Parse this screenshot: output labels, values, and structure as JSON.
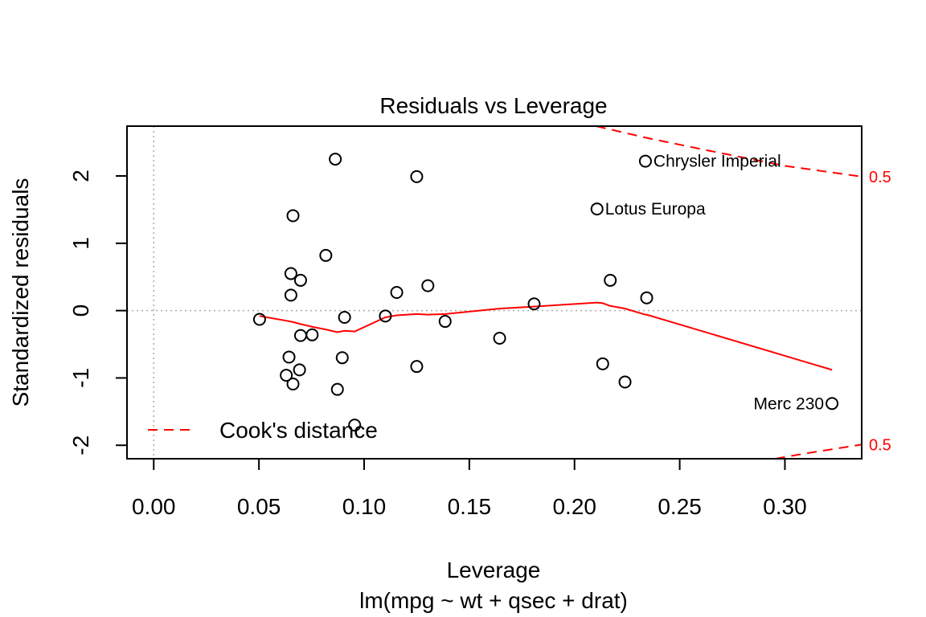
{
  "chart_data": {
    "type": "scatter",
    "title": "Residuals vs Leverage",
    "xlabel": "Leverage",
    "subtitle": "lm(mpg ~ wt + qsec + drat)",
    "ylabel": "Standardized residuals",
    "xlim": [
      -0.0127,
      0.3365
    ],
    "ylim": [
      -2.2,
      2.74
    ],
    "x_ticks": [
      {
        "value": 0.0,
        "label": "0.00"
      },
      {
        "value": 0.05,
        "label": "0.05"
      },
      {
        "value": 0.1,
        "label": "0.10"
      },
      {
        "value": 0.15,
        "label": "0.15"
      },
      {
        "value": 0.2,
        "label": "0.20"
      },
      {
        "value": 0.25,
        "label": "0.25"
      },
      {
        "value": 0.3,
        "label": "0.30"
      }
    ],
    "y_ticks": [
      {
        "value": -2,
        "label": "-2"
      },
      {
        "value": -1,
        "label": "-1"
      },
      {
        "value": 0,
        "label": "0"
      },
      {
        "value": 1,
        "label": "1"
      },
      {
        "value": 2,
        "label": "2"
      }
    ],
    "grid": false,
    "reference_lines": {
      "x": 0,
      "y": 0,
      "style": "dotted",
      "color": "#aaaaaa"
    },
    "points": [
      {
        "x": 0.0863,
        "y": 2.25
      },
      {
        "x": 0.125,
        "y": 1.99
      },
      {
        "x": 0.2337,
        "y": 2.22,
        "label": "Chrysler Imperial"
      },
      {
        "x": 0.2107,
        "y": 1.51,
        "label": "Lotus Europa"
      },
      {
        "x": 0.0662,
        "y": 1.41
      },
      {
        "x": 0.0818,
        "y": 0.82
      },
      {
        "x": 0.0652,
        "y": 0.55
      },
      {
        "x": 0.0698,
        "y": 0.45
      },
      {
        "x": 0.0652,
        "y": 0.23
      },
      {
        "x": 0.1155,
        "y": 0.27
      },
      {
        "x": 0.1303,
        "y": 0.37
      },
      {
        "x": 0.1808,
        "y": 0.1
      },
      {
        "x": 0.217,
        "y": 0.45
      },
      {
        "x": 0.2343,
        "y": 0.19
      },
      {
        "x": 0.0503,
        "y": -0.13
      },
      {
        "x": 0.0907,
        "y": -0.1
      },
      {
        "x": 0.1101,
        "y": -0.08
      },
      {
        "x": 0.1385,
        "y": -0.16
      },
      {
        "x": 0.0698,
        "y": -0.37
      },
      {
        "x": 0.0753,
        "y": -0.36
      },
      {
        "x": 0.1644,
        "y": -0.41
      },
      {
        "x": 0.0643,
        "y": -0.69
      },
      {
        "x": 0.0896,
        "y": -0.7
      },
      {
        "x": 0.125,
        "y": -0.83
      },
      {
        "x": 0.2134,
        "y": -0.79
      },
      {
        "x": 0.0693,
        "y": -0.88
      },
      {
        "x": 0.063,
        "y": -0.96
      },
      {
        "x": 0.0662,
        "y": -1.09
      },
      {
        "x": 0.0873,
        "y": -1.17
      },
      {
        "x": 0.224,
        "y": -1.06
      },
      {
        "x": 0.0955,
        "y": -1.7
      },
      {
        "x": 0.3224,
        "y": -1.38,
        "label": "Merc 230"
      }
    ],
    "smoother": {
      "name": "smoother",
      "color": "#ff0000",
      "points": [
        [
          0.0503,
          -0.08
        ],
        [
          0.063,
          -0.15
        ],
        [
          0.0662,
          -0.17
        ],
        [
          0.0698,
          -0.2
        ],
        [
          0.0753,
          -0.24
        ],
        [
          0.0818,
          -0.28
        ],
        [
          0.0873,
          -0.32
        ],
        [
          0.0907,
          -0.3
        ],
        [
          0.0955,
          -0.31
        ],
        [
          0.1101,
          -0.1
        ],
        [
          0.1155,
          -0.07
        ],
        [
          0.125,
          -0.05
        ],
        [
          0.1303,
          -0.06
        ],
        [
          0.1385,
          -0.05
        ],
        [
          0.1644,
          0.03
        ],
        [
          0.1808,
          0.06
        ],
        [
          0.2107,
          0.12
        ],
        [
          0.2134,
          0.11
        ],
        [
          0.217,
          0.07
        ],
        [
          0.224,
          0.03
        ],
        [
          0.2337,
          -0.06
        ],
        [
          0.2343,
          -0.06
        ],
        [
          0.3224,
          -0.88
        ]
      ]
    },
    "cooks_distance": {
      "levels": [
        0.5
      ],
      "label": "0.5",
      "color": "#ff0000",
      "upper": [
        [
          0.2103,
          2.74
        ],
        [
          0.2337,
          2.57
        ],
        [
          0.26,
          2.4
        ],
        [
          0.3,
          2.15
        ],
        [
          0.3365,
          1.99
        ]
      ],
      "lower": [
        [
          0.2955,
          -2.2
        ],
        [
          0.31,
          -2.12
        ],
        [
          0.3365,
          -1.99
        ]
      ]
    },
    "legend": {
      "position": "bottom-left",
      "entries": [
        {
          "label": "Cook's distance",
          "style": "dashed",
          "color": "#ff0000"
        }
      ]
    }
  }
}
